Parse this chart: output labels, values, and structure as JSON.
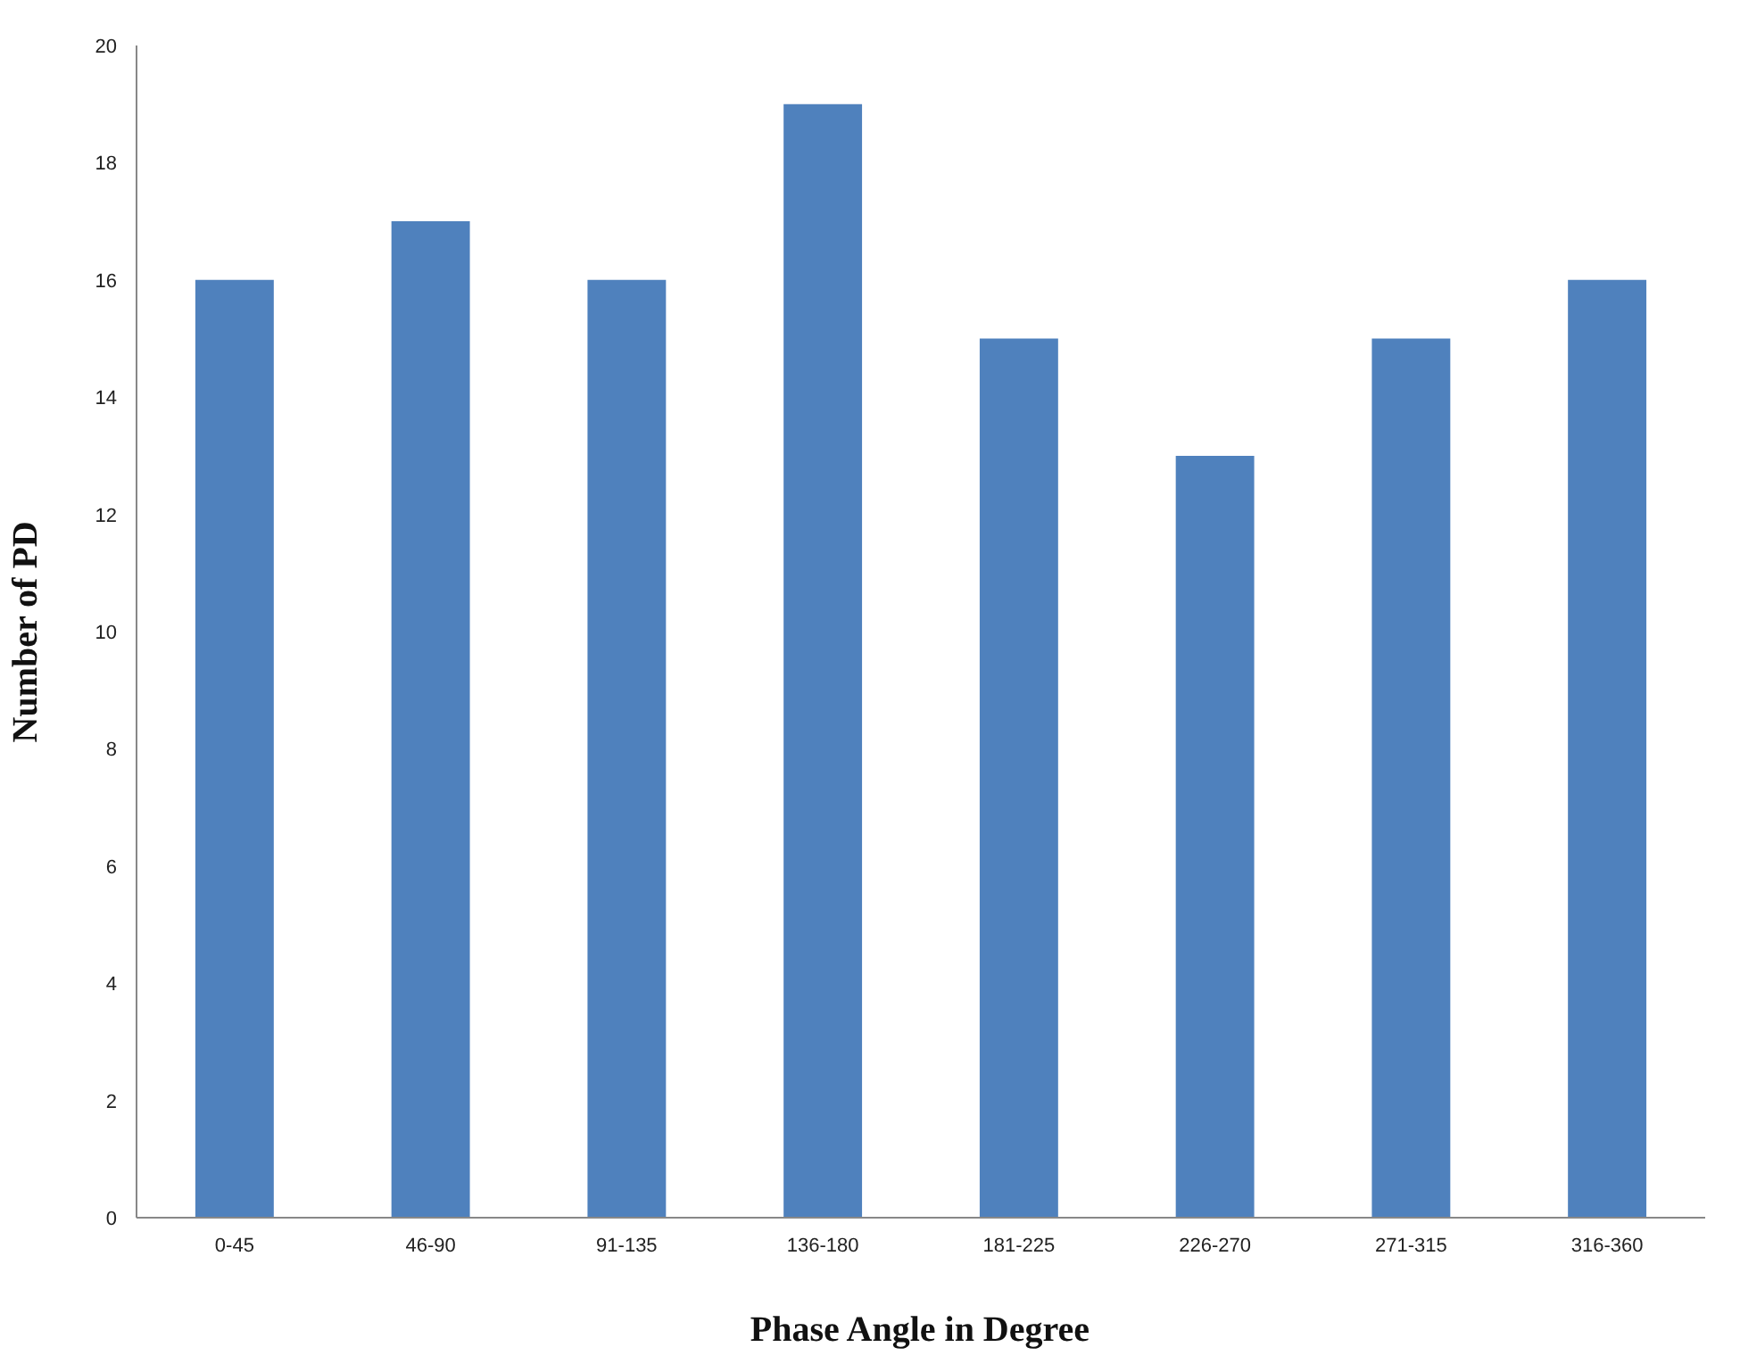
{
  "chart_data": {
    "type": "bar",
    "xlabel": "Phase Angle in Degree",
    "ylabel": "Number of PD",
    "categories": [
      "0-45",
      "46-90",
      "91-135",
      "136-180",
      "181-225",
      "226-270",
      "271-315",
      "316-360"
    ],
    "values": [
      16,
      17,
      16,
      19,
      15,
      13,
      15,
      16
    ],
    "color": "#4f81bd",
    "ylim": [
      0,
      20
    ],
    "yticks": [
      0,
      2,
      4,
      6,
      8,
      10,
      12,
      14,
      16,
      18,
      20
    ],
    "grid": false
  }
}
